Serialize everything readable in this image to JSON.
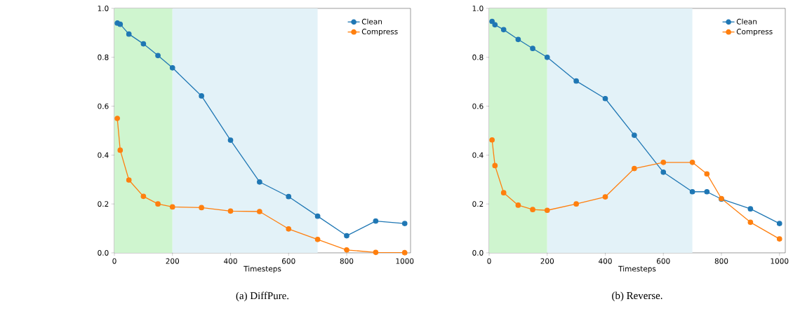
{
  "chart_data": [
    {
      "type": "line",
      "title": "(a) DiffPure.",
      "xlabel": "Timesteps",
      "xlim": [
        0,
        1020
      ],
      "ylim": [
        0,
        1.0
      ],
      "xticks": [
        0,
        200,
        400,
        600,
        800,
        1000
      ],
      "yticks": [
        {
          "value": 0,
          "label": "0.0"
        },
        {
          "value": 0.2,
          "label": "0.2"
        },
        {
          "value": 0.4,
          "label": "0.4"
        },
        {
          "value": 0.6,
          "label": "0.6"
        },
        {
          "value": 0.8,
          "label": "0.8"
        },
        {
          "value": 1.0,
          "label": "1.0"
        }
      ],
      "legend": "top right",
      "marker": "circle",
      "grid": false,
      "x": [
        10,
        20,
        50,
        100,
        150,
        200,
        300,
        400,
        500,
        600,
        700,
        800,
        900,
        1000
      ],
      "bands": [
        {
          "axis": "x",
          "from": 0,
          "to": 200,
          "color": "#cff5cf"
        },
        {
          "axis": "x",
          "from": 200,
          "to": 700,
          "color": "#e3f2f8"
        }
      ],
      "series": [
        {
          "name": "Clean",
          "color": "#1f77b4",
          "values": [
            0.94,
            0.935,
            0.895,
            0.855,
            0.807,
            0.757,
            0.642,
            0.461,
            0.29,
            0.23,
            0.15,
            0.07,
            0.13,
            0.12
          ]
        },
        {
          "name": "Compress",
          "color": "#ff7f0e",
          "values": [
            0.55,
            0.42,
            0.298,
            0.231,
            0.2,
            0.188,
            0.185,
            0.171,
            0.169,
            0.098,
            0.055,
            0.012,
            0.002,
            0.001
          ]
        }
      ]
    },
    {
      "type": "line",
      "title": "(b) Reverse.",
      "xlabel": "Timesteps",
      "xlim": [
        0,
        1020
      ],
      "ylim": [
        0,
        1.0
      ],
      "xticks": [
        0,
        200,
        400,
        600,
        800,
        1000
      ],
      "yticks": [
        {
          "value": 0,
          "label": "0.0"
        },
        {
          "value": 0.2,
          "label": "0.2"
        },
        {
          "value": 0.4,
          "label": "0.4"
        },
        {
          "value": 0.6,
          "label": "0.6"
        },
        {
          "value": 0.8,
          "label": "0.8"
        },
        {
          "value": 1.0,
          "label": "1.0"
        }
      ],
      "legend": "top right",
      "marker": "circle",
      "grid": false,
      "x": [
        10,
        20,
        50,
        100,
        150,
        200,
        300,
        400,
        500,
        600,
        700,
        750,
        800,
        900,
        1000
      ],
      "bands": [
        {
          "axis": "x",
          "from": 0,
          "to": 200,
          "color": "#cff5cf"
        },
        {
          "axis": "x",
          "from": 200,
          "to": 700,
          "color": "#e3f2f8"
        }
      ],
      "series": [
        {
          "name": "Clean",
          "color": "#1f77b4",
          "values": [
            0.947,
            0.933,
            0.913,
            0.873,
            0.836,
            0.8,
            0.703,
            0.631,
            0.481,
            0.33,
            0.25,
            0.25,
            0.22,
            0.18,
            0.12
          ]
        },
        {
          "name": "Compress",
          "color": "#ff7f0e",
          "values": [
            0.462,
            0.357,
            0.246,
            0.195,
            0.177,
            0.174,
            0.2,
            0.229,
            0.345,
            0.37,
            0.37,
            0.323,
            0.222,
            0.125,
            0.057
          ]
        }
      ]
    }
  ]
}
